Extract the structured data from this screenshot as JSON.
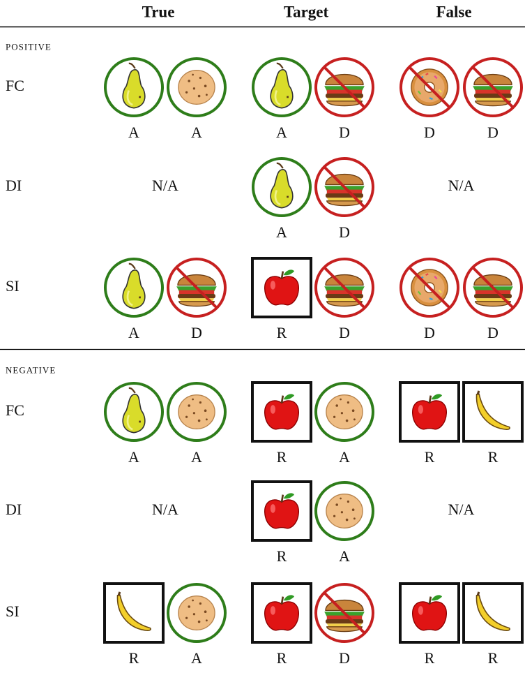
{
  "header": {
    "columns": [
      "True",
      "Target",
      "False"
    ]
  },
  "sections": [
    {
      "title": "positive",
      "rows": [
        {
          "label": "FC",
          "cells": [
            [
              "A",
              "A"
            ],
            [
              "A",
              "D"
            ],
            [
              "D",
              "D"
            ]
          ]
        },
        {
          "label": "DI",
          "cells": [
            "N/A",
            [
              "A",
              "D"
            ],
            "N/A"
          ]
        },
        {
          "label": "SI",
          "cells": [
            [
              "A",
              "D"
            ],
            [
              "R",
              "D"
            ],
            [
              "D",
              "D"
            ]
          ]
        }
      ]
    },
    {
      "title": "negative",
      "rows": [
        {
          "label": "FC",
          "cells": [
            [
              "A",
              "A"
            ],
            [
              "R",
              "A"
            ],
            [
              "R",
              "R"
            ]
          ]
        },
        {
          "label": "DI",
          "cells": [
            "N/A",
            [
              "R",
              "A"
            ],
            "N/A"
          ]
        },
        {
          "label": "SI",
          "cells": [
            [
              "R",
              "A"
            ],
            [
              "R",
              "D"
            ],
            [
              "R",
              "R"
            ]
          ]
        }
      ]
    }
  ]
}
